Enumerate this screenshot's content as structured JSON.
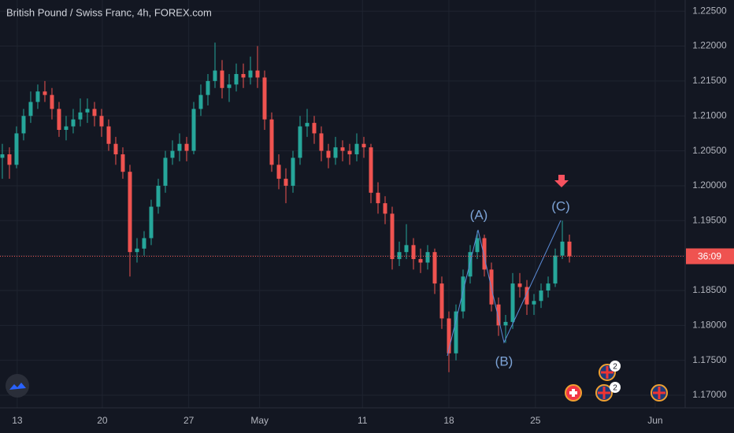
{
  "chart_data": {
    "type": "candlestick",
    "title": "British Pound / Swiss Franc, 4h, FOREX.com",
    "up_color": "#26a69a",
    "down_color": "#ef5350",
    "grid": true,
    "x": [
      0,
      1,
      2,
      3,
      4,
      5,
      6,
      7,
      8,
      9,
      10,
      11,
      12,
      13,
      14,
      15,
      16,
      17,
      18,
      19,
      20,
      21,
      22,
      23,
      24,
      25,
      26,
      27,
      28,
      29,
      30,
      31,
      32,
      33,
      34,
      35,
      36,
      37,
      38,
      39,
      40,
      41,
      42,
      43,
      44,
      45,
      46,
      47,
      48,
      49,
      50,
      51,
      52,
      53,
      54,
      55,
      56,
      57,
      58,
      59,
      60,
      61,
      62,
      63,
      64,
      65,
      66,
      67,
      68,
      69,
      70,
      71,
      72,
      73,
      74,
      75,
      76,
      77,
      78,
      79,
      80
    ],
    "ohlc": [
      [
        1.204,
        1.206,
        1.201,
        1.2045
      ],
      [
        1.2045,
        1.2055,
        1.201,
        1.203
      ],
      [
        1.203,
        1.2085,
        1.2025,
        1.2075
      ],
      [
        1.2075,
        1.211,
        1.2065,
        1.21
      ],
      [
        1.21,
        1.2135,
        1.209,
        1.212
      ],
      [
        1.212,
        1.2145,
        1.211,
        1.2135
      ],
      [
        1.2135,
        1.215,
        1.212,
        1.213
      ],
      [
        1.213,
        1.214,
        1.2095,
        1.211
      ],
      [
        1.211,
        1.212,
        1.207,
        1.208
      ],
      [
        1.208,
        1.21,
        1.2065,
        1.2085
      ],
      [
        1.2085,
        1.211,
        1.2075,
        1.2095
      ],
      [
        1.2095,
        1.2125,
        1.2085,
        1.2105
      ],
      [
        1.2105,
        1.2125,
        1.209,
        1.211
      ],
      [
        1.211,
        1.212,
        1.2085,
        1.21
      ],
      [
        1.21,
        1.211,
        1.207,
        1.2085
      ],
      [
        1.2085,
        1.2095,
        1.205,
        1.206
      ],
      [
        1.206,
        1.207,
        1.203,
        1.2045
      ],
      [
        1.2045,
        1.2055,
        1.201,
        1.202
      ],
      [
        1.202,
        1.203,
        1.187,
        1.1905
      ],
      [
        1.1905,
        1.1925,
        1.189,
        1.191
      ],
      [
        1.191,
        1.1935,
        1.19,
        1.1925
      ],
      [
        1.1925,
        1.198,
        1.1915,
        1.197
      ],
      [
        1.197,
        1.201,
        1.196,
        1.2
      ],
      [
        1.2,
        1.205,
        1.199,
        1.204
      ],
      [
        1.204,
        1.2065,
        1.203,
        1.205
      ],
      [
        1.205,
        1.2075,
        1.2035,
        1.206
      ],
      [
        1.206,
        1.207,
        1.2035,
        1.205
      ],
      [
        1.205,
        1.212,
        1.2045,
        1.211
      ],
      [
        1.211,
        1.2145,
        1.21,
        1.213
      ],
      [
        1.213,
        1.216,
        1.2115,
        1.215
      ],
      [
        1.215,
        1.2205,
        1.214,
        1.2165
      ],
      [
        1.2165,
        1.218,
        1.2125,
        1.214
      ],
      [
        1.214,
        1.216,
        1.212,
        1.2145
      ],
      [
        1.2145,
        1.2175,
        1.2135,
        1.216
      ],
      [
        1.216,
        1.2175,
        1.214,
        1.2155
      ],
      [
        1.2155,
        1.2185,
        1.2145,
        1.2165
      ],
      [
        1.2165,
        1.22,
        1.214,
        1.2155
      ],
      [
        1.2155,
        1.2165,
        1.208,
        1.2095
      ],
      [
        1.2095,
        1.2105,
        1.202,
        1.203
      ],
      [
        1.203,
        1.2045,
        1.1995,
        1.201
      ],
      [
        1.201,
        1.2025,
        1.1975,
        1.2
      ],
      [
        1.2,
        1.205,
        1.199,
        1.204
      ],
      [
        1.204,
        1.21,
        1.203,
        1.2085
      ],
      [
        1.2085,
        1.211,
        1.207,
        1.209
      ],
      [
        1.209,
        1.21,
        1.206,
        1.2075
      ],
      [
        1.2075,
        1.2085,
        1.2035,
        1.205
      ],
      [
        1.205,
        1.206,
        1.2025,
        1.204
      ],
      [
        1.204,
        1.207,
        1.203,
        1.2055
      ],
      [
        1.2055,
        1.2065,
        1.2035,
        1.205
      ],
      [
        1.205,
        1.206,
        1.203,
        1.2045
      ],
      [
        1.2045,
        1.2075,
        1.2035,
        1.206
      ],
      [
        1.206,
        1.207,
        1.204,
        1.2055
      ],
      [
        1.2055,
        1.206,
        1.1975,
        1.199
      ],
      [
        1.199,
        1.2005,
        1.196,
        1.1975
      ],
      [
        1.1975,
        1.1985,
        1.1945,
        1.196
      ],
      [
        1.196,
        1.197,
        1.188,
        1.1895
      ],
      [
        1.1895,
        1.192,
        1.1885,
        1.1905
      ],
      [
        1.1905,
        1.1945,
        1.1895,
        1.1915
      ],
      [
        1.1915,
        1.1925,
        1.188,
        1.1895
      ],
      [
        1.1895,
        1.191,
        1.1875,
        1.189
      ],
      [
        1.189,
        1.1915,
        1.188,
        1.1905
      ],
      [
        1.1905,
        1.191,
        1.1845,
        1.186
      ],
      [
        1.186,
        1.187,
        1.1795,
        1.181
      ],
      [
        1.181,
        1.182,
        1.1733,
        1.176
      ],
      [
        1.176,
        1.183,
        1.175,
        1.182
      ],
      [
        1.182,
        1.188,
        1.181,
        1.187
      ],
      [
        1.187,
        1.1915,
        1.186,
        1.1905
      ],
      [
        1.1905,
        1.1935,
        1.1895,
        1.1925
      ],
      [
        1.1925,
        1.193,
        1.187,
        1.188
      ],
      [
        1.188,
        1.189,
        1.182,
        1.183
      ],
      [
        1.183,
        1.184,
        1.1785,
        1.18
      ],
      [
        1.18,
        1.1815,
        1.1775,
        1.1805
      ],
      [
        1.1805,
        1.1875,
        1.1795,
        1.186
      ],
      [
        1.186,
        1.1875,
        1.184,
        1.1855
      ],
      [
        1.1855,
        1.1865,
        1.1815,
        1.183
      ],
      [
        1.183,
        1.1845,
        1.1815,
        1.1835
      ],
      [
        1.1835,
        1.186,
        1.1825,
        1.185
      ],
      [
        1.185,
        1.187,
        1.184,
        1.186
      ],
      [
        1.186,
        1.191,
        1.1855,
        1.19
      ],
      [
        1.19,
        1.195,
        1.1895,
        1.192
      ],
      [
        1.192,
        1.193,
        1.189,
        1.1899
      ]
    ],
    "xlim": [
      -0.33,
      96.33
    ],
    "xticks": [
      {
        "value": 2.1,
        "label": "13"
      },
      {
        "value": 14.1,
        "label": "20"
      },
      {
        "value": 26.3,
        "label": "27"
      },
      {
        "value": 36.3,
        "label": "May"
      },
      {
        "value": 50.8,
        "label": "11"
      },
      {
        "value": 63,
        "label": "18"
      },
      {
        "value": 75.2,
        "label": "25"
      },
      {
        "value": 92.1,
        "label": "Jun"
      }
    ],
    "ylim": [
      1.1682,
      1.2266
    ],
    "yticks": [
      {
        "value": 1.17,
        "label": "1.17000"
      },
      {
        "value": 1.175,
        "label": "1.17500"
      },
      {
        "value": 1.18,
        "label": "1.18000"
      },
      {
        "value": 1.185,
        "label": "1.18500"
      },
      {
        "value": 1.19,
        "label": "1.19000"
      },
      {
        "value": 1.195,
        "label": "1.19500"
      },
      {
        "value": 1.2,
        "label": "1.20000"
      },
      {
        "value": 1.205,
        "label": "1.20500"
      },
      {
        "value": 1.21,
        "label": "1.21000"
      },
      {
        "value": 1.215,
        "label": "1.21500"
      },
      {
        "value": 1.22,
        "label": "1.22000"
      },
      {
        "value": 1.225,
        "label": "1.22500"
      }
    ],
    "last_price": 1.1899,
    "countdown": "36:09",
    "annotations": [
      "(A)",
      "(B)",
      "(C)"
    ],
    "event_badges": [
      "2",
      "2"
    ]
  }
}
